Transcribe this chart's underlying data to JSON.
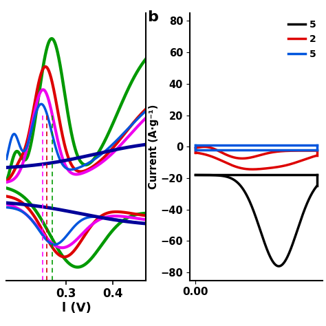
{
  "panel_a": {
    "xlim": [
      0.175,
      0.47
    ],
    "ylim": [
      -0.55,
      0.85
    ],
    "xlabel": "l (V)",
    "xticks": [
      0.3,
      0.4
    ],
    "xtick_labels": [
      "0.3",
      "0.4"
    ],
    "dashed_lines": {
      "magenta": 0.252,
      "red": 0.26,
      "green": 0.271
    },
    "curves": {
      "green": {
        "color": "#009900",
        "lw": 3.2
      },
      "red": {
        "color": "#dd0000",
        "lw": 3.0
      },
      "magenta": {
        "color": "#ee00ee",
        "lw": 3.0
      },
      "blue": {
        "color": "#0055dd",
        "lw": 2.5
      },
      "navy": {
        "color": "#000099",
        "lw": 3.5
      }
    }
  },
  "panel_b": {
    "xlim": [
      -0.005,
      0.11
    ],
    "ylim": [
      -85,
      85
    ],
    "ylabel": "Current (A·g⁻¹)",
    "xticks": [
      0.0
    ],
    "xtick_labels": [
      "0.00"
    ],
    "yticks": [
      -80,
      -60,
      -40,
      -20,
      0,
      20,
      40,
      60,
      80
    ],
    "label_b": "b",
    "legend": {
      "black": {
        "label": "5",
        "color": "#000000",
        "lw": 2.5
      },
      "red": {
        "label": "2",
        "color": "#dd0000",
        "lw": 2.5
      },
      "blue": {
        "label": "5",
        "color": "#0055dd",
        "lw": 2.5
      }
    }
  },
  "background": "#ffffff"
}
